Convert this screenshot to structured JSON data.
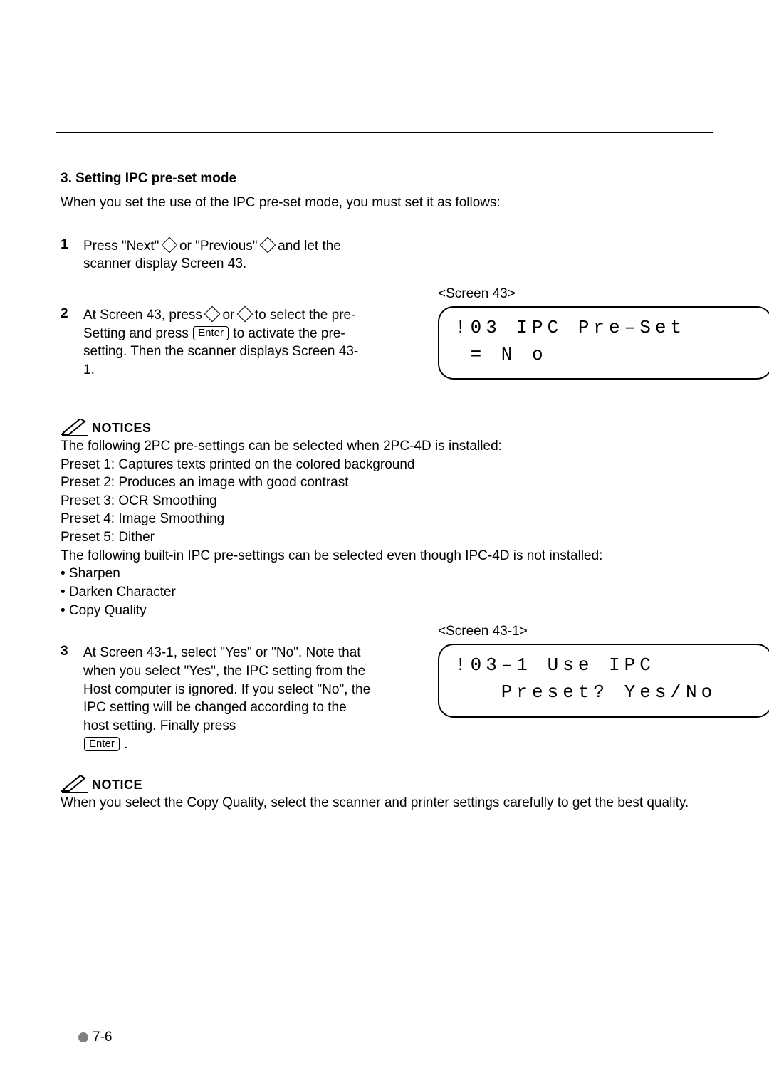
{
  "section_title": "3. Setting IPC pre-set mode",
  "intro": "When you set the use of the IPC pre-set mode, you must set it as follows:",
  "steps": {
    "s1": {
      "num": "1",
      "pre": "Press \"Next\" ",
      "mid": " or \"Previous\" ",
      "post": " and let the scanner display Screen 43."
    },
    "s2": {
      "num": "2",
      "pre": "At Screen 43, press ",
      "mid": " or ",
      "post_a": " to select the pre-Setting and press ",
      "post_b": " to activate the pre-setting. Then the scanner displays Screen 43-1.",
      "enter": "Enter"
    },
    "s3": {
      "num": "3",
      "body_a": "At Screen 43-1, select \"Yes\" or \"No\". Note that when you select \"Yes\", the IPC setting from the Host computer is ignored.  If you select \"No\", the IPC setting will be changed according to the host setting. Finally press ",
      "enter": "Enter",
      "body_b": " ."
    }
  },
  "screen43": {
    "label": "<Screen 43>",
    "line1": "!03 IPC Pre–Set",
    "line2": " = N o"
  },
  "screen431": {
    "label": "<Screen 43-1>",
    "line1": "!03–1 Use IPC",
    "line2": "   Preset? Yes/No"
  },
  "notices1": {
    "heading": "NOTICES",
    "lines": [
      "The following 2PC pre-settings can be selected when 2PC-4D is installed:",
      "Preset 1: Captures texts printed on the colored background",
      "Preset 2: Produces an image with good contrast",
      "Preset 3: OCR Smoothing",
      "Preset 4: Image Smoothing",
      "Preset 5: Dither",
      "The following built-in IPC pre-settings can be selected even though IPC-4D is not installed:",
      "• Sharpen",
      "• Darken Character",
      "• Copy Quality"
    ]
  },
  "notice2": {
    "heading": "NOTICE",
    "body": "When you select the Copy Quality, select the scanner and printer settings carefully to get the best quality."
  },
  "page_number": "7-6"
}
